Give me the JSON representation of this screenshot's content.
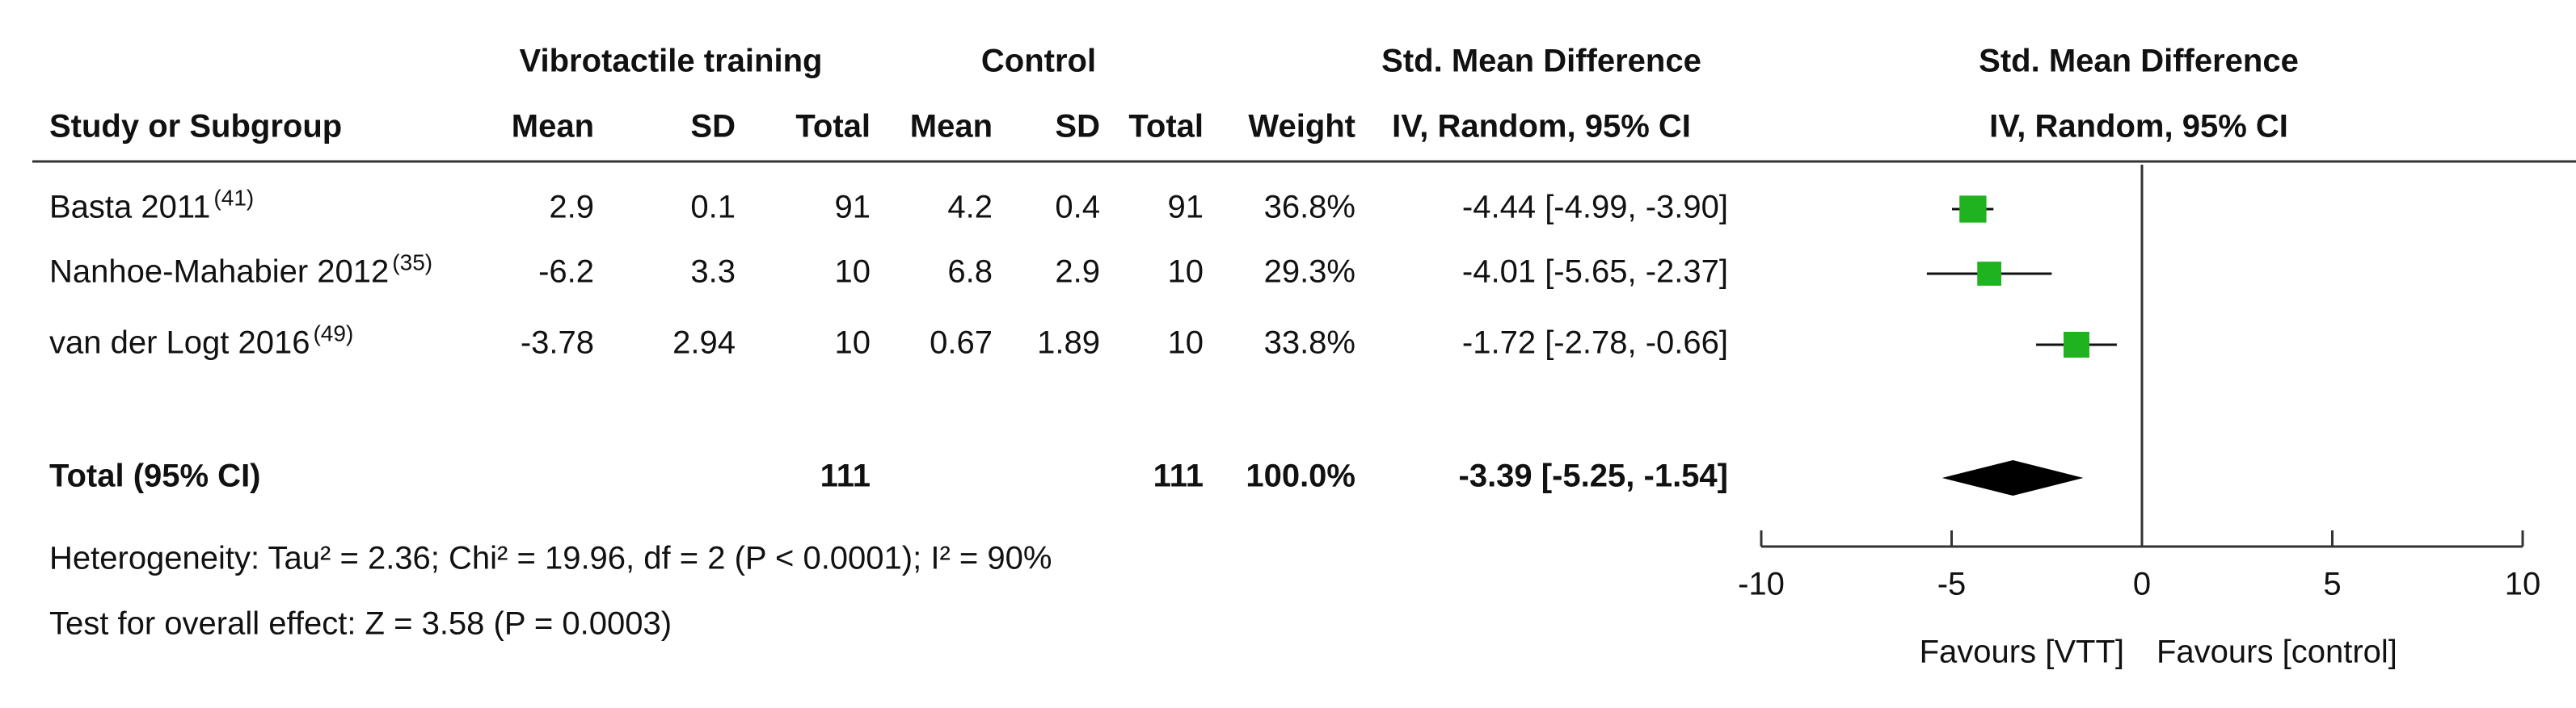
{
  "chart_data": {
    "type": "forest",
    "group_headers": [
      "Vibrotactile training",
      "Control",
      "Std. Mean Difference",
      "Std. Mean Difference"
    ],
    "column_headers": [
      "Study or Subgroup",
      "Mean",
      "SD",
      "Total",
      "Mean",
      "SD",
      "Total",
      "Weight",
      "IV, Random, 95% CI",
      "IV, Random, 95% CI"
    ],
    "studies": [
      {
        "name": "Basta 2011",
        "ref": "(41)",
        "exp_mean": 2.9,
        "exp_sd": 0.1,
        "exp_total": 91,
        "ctl_mean": 4.2,
        "ctl_sd": 0.4,
        "ctl_total": 91,
        "weight": 36.8,
        "weight_label": "36.8%",
        "smd": -4.44,
        "ci_low": -4.99,
        "ci_high": -3.9,
        "ci_label": "-4.44 [-4.99, -3.90]"
      },
      {
        "name": "Nanhoe-Mahabier 2012",
        "ref": "(35)",
        "exp_mean": -6.2,
        "exp_sd": 3.3,
        "exp_total": 10,
        "ctl_mean": 6.8,
        "ctl_sd": 2.9,
        "ctl_total": 10,
        "weight": 29.3,
        "weight_label": "29.3%",
        "smd": -4.01,
        "ci_low": -5.65,
        "ci_high": -2.37,
        "ci_label": "-4.01 [-5.65, -2.37]"
      },
      {
        "name": "van der Logt 2016",
        "ref": "(49)",
        "exp_mean": -3.78,
        "exp_sd": 2.94,
        "exp_total": 10,
        "ctl_mean": 0.67,
        "ctl_sd": 1.89,
        "ctl_total": 10,
        "weight": 33.8,
        "weight_label": "33.8%",
        "smd": -1.72,
        "ci_low": -2.78,
        "ci_high": -0.66,
        "ci_label": "-1.72 [-2.78, -0.66]"
      }
    ],
    "total": {
      "name": "Total (95% CI)",
      "exp_total": 111,
      "ctl_total": 111,
      "weight": 100,
      "weight_label": "100.0%",
      "smd": -3.39,
      "ci_low": -5.25,
      "ci_high": -1.54,
      "ci_label": "-3.39 [-5.25, -1.54]"
    },
    "heterogeneity": "Heterogeneity: Tau² = 2.36; Chi² = 19.96, df = 2 (P < 0.0001); I² = 90%",
    "overall_effect": "Test for overall effect: Z = 3.58 (P = 0.0003)",
    "xlim": [
      -10,
      10
    ],
    "xticks": [
      -10,
      -5,
      0,
      5,
      10
    ],
    "favours_left": "Favours [VTT]",
    "favours_right": "Favours [control]",
    "marker_color": "#1fb31f"
  }
}
